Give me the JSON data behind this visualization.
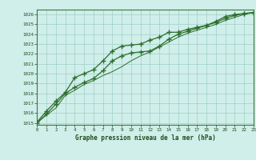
{
  "title": "Graphe pression niveau de la mer (hPa)",
  "bg_color": "#d0eeea",
  "line_color": "#2d6e2d",
  "grid_color": "#a0cfc8",
  "ylim": [
    1014.8,
    1026.5
  ],
  "xlim": [
    0,
    23
  ],
  "yticks": [
    1015,
    1016,
    1017,
    1018,
    1019,
    1020,
    1021,
    1022,
    1023,
    1024,
    1025,
    1026
  ],
  "xticks": [
    0,
    1,
    2,
    3,
    4,
    5,
    6,
    7,
    8,
    9,
    10,
    11,
    12,
    13,
    14,
    15,
    16,
    17,
    18,
    19,
    20,
    21,
    22,
    23
  ],
  "series1_x": [
    0,
    1,
    2,
    3,
    4,
    5,
    6,
    7,
    8,
    9,
    10,
    11,
    12,
    13,
    14,
    15,
    16,
    17,
    18,
    19,
    20,
    21,
    22,
    23
  ],
  "series1_y": [
    1015.1,
    1016.2,
    1017.2,
    1018.1,
    1019.6,
    1020.0,
    1020.4,
    1021.3,
    1022.3,
    1022.8,
    1022.9,
    1023.0,
    1023.4,
    1023.7,
    1024.2,
    1024.2,
    1024.5,
    1024.7,
    1024.9,
    1025.3,
    1025.8,
    1026.0,
    1026.1,
    1026.2
  ],
  "series2_x": [
    0,
    1,
    2,
    3,
    4,
    5,
    6,
    7,
    8,
    9,
    10,
    11,
    12,
    13,
    14,
    15,
    16,
    17,
    18,
    19,
    20,
    21,
    22,
    23
  ],
  "series2_y": [
    1015.0,
    1015.9,
    1016.9,
    1018.0,
    1018.6,
    1019.1,
    1019.5,
    1020.3,
    1021.3,
    1021.8,
    1022.1,
    1022.2,
    1022.3,
    1022.8,
    1023.5,
    1024.0,
    1024.3,
    1024.6,
    1024.9,
    1025.2,
    1025.6,
    1025.9,
    1026.1,
    1026.2
  ],
  "series3_x": [
    0,
    1,
    2,
    3,
    4,
    5,
    6,
    7,
    8,
    9,
    10,
    11,
    12,
    13,
    14,
    15,
    16,
    17,
    18,
    19,
    20,
    21,
    22,
    23
  ],
  "series3_y": [
    1015.0,
    1015.8,
    1016.5,
    1017.8,
    1018.3,
    1018.9,
    1019.3,
    1019.8,
    1020.2,
    1020.7,
    1021.3,
    1021.8,
    1022.2,
    1022.7,
    1023.2,
    1023.7,
    1024.1,
    1024.4,
    1024.7,
    1025.0,
    1025.4,
    1025.7,
    1026.0,
    1026.2
  ]
}
